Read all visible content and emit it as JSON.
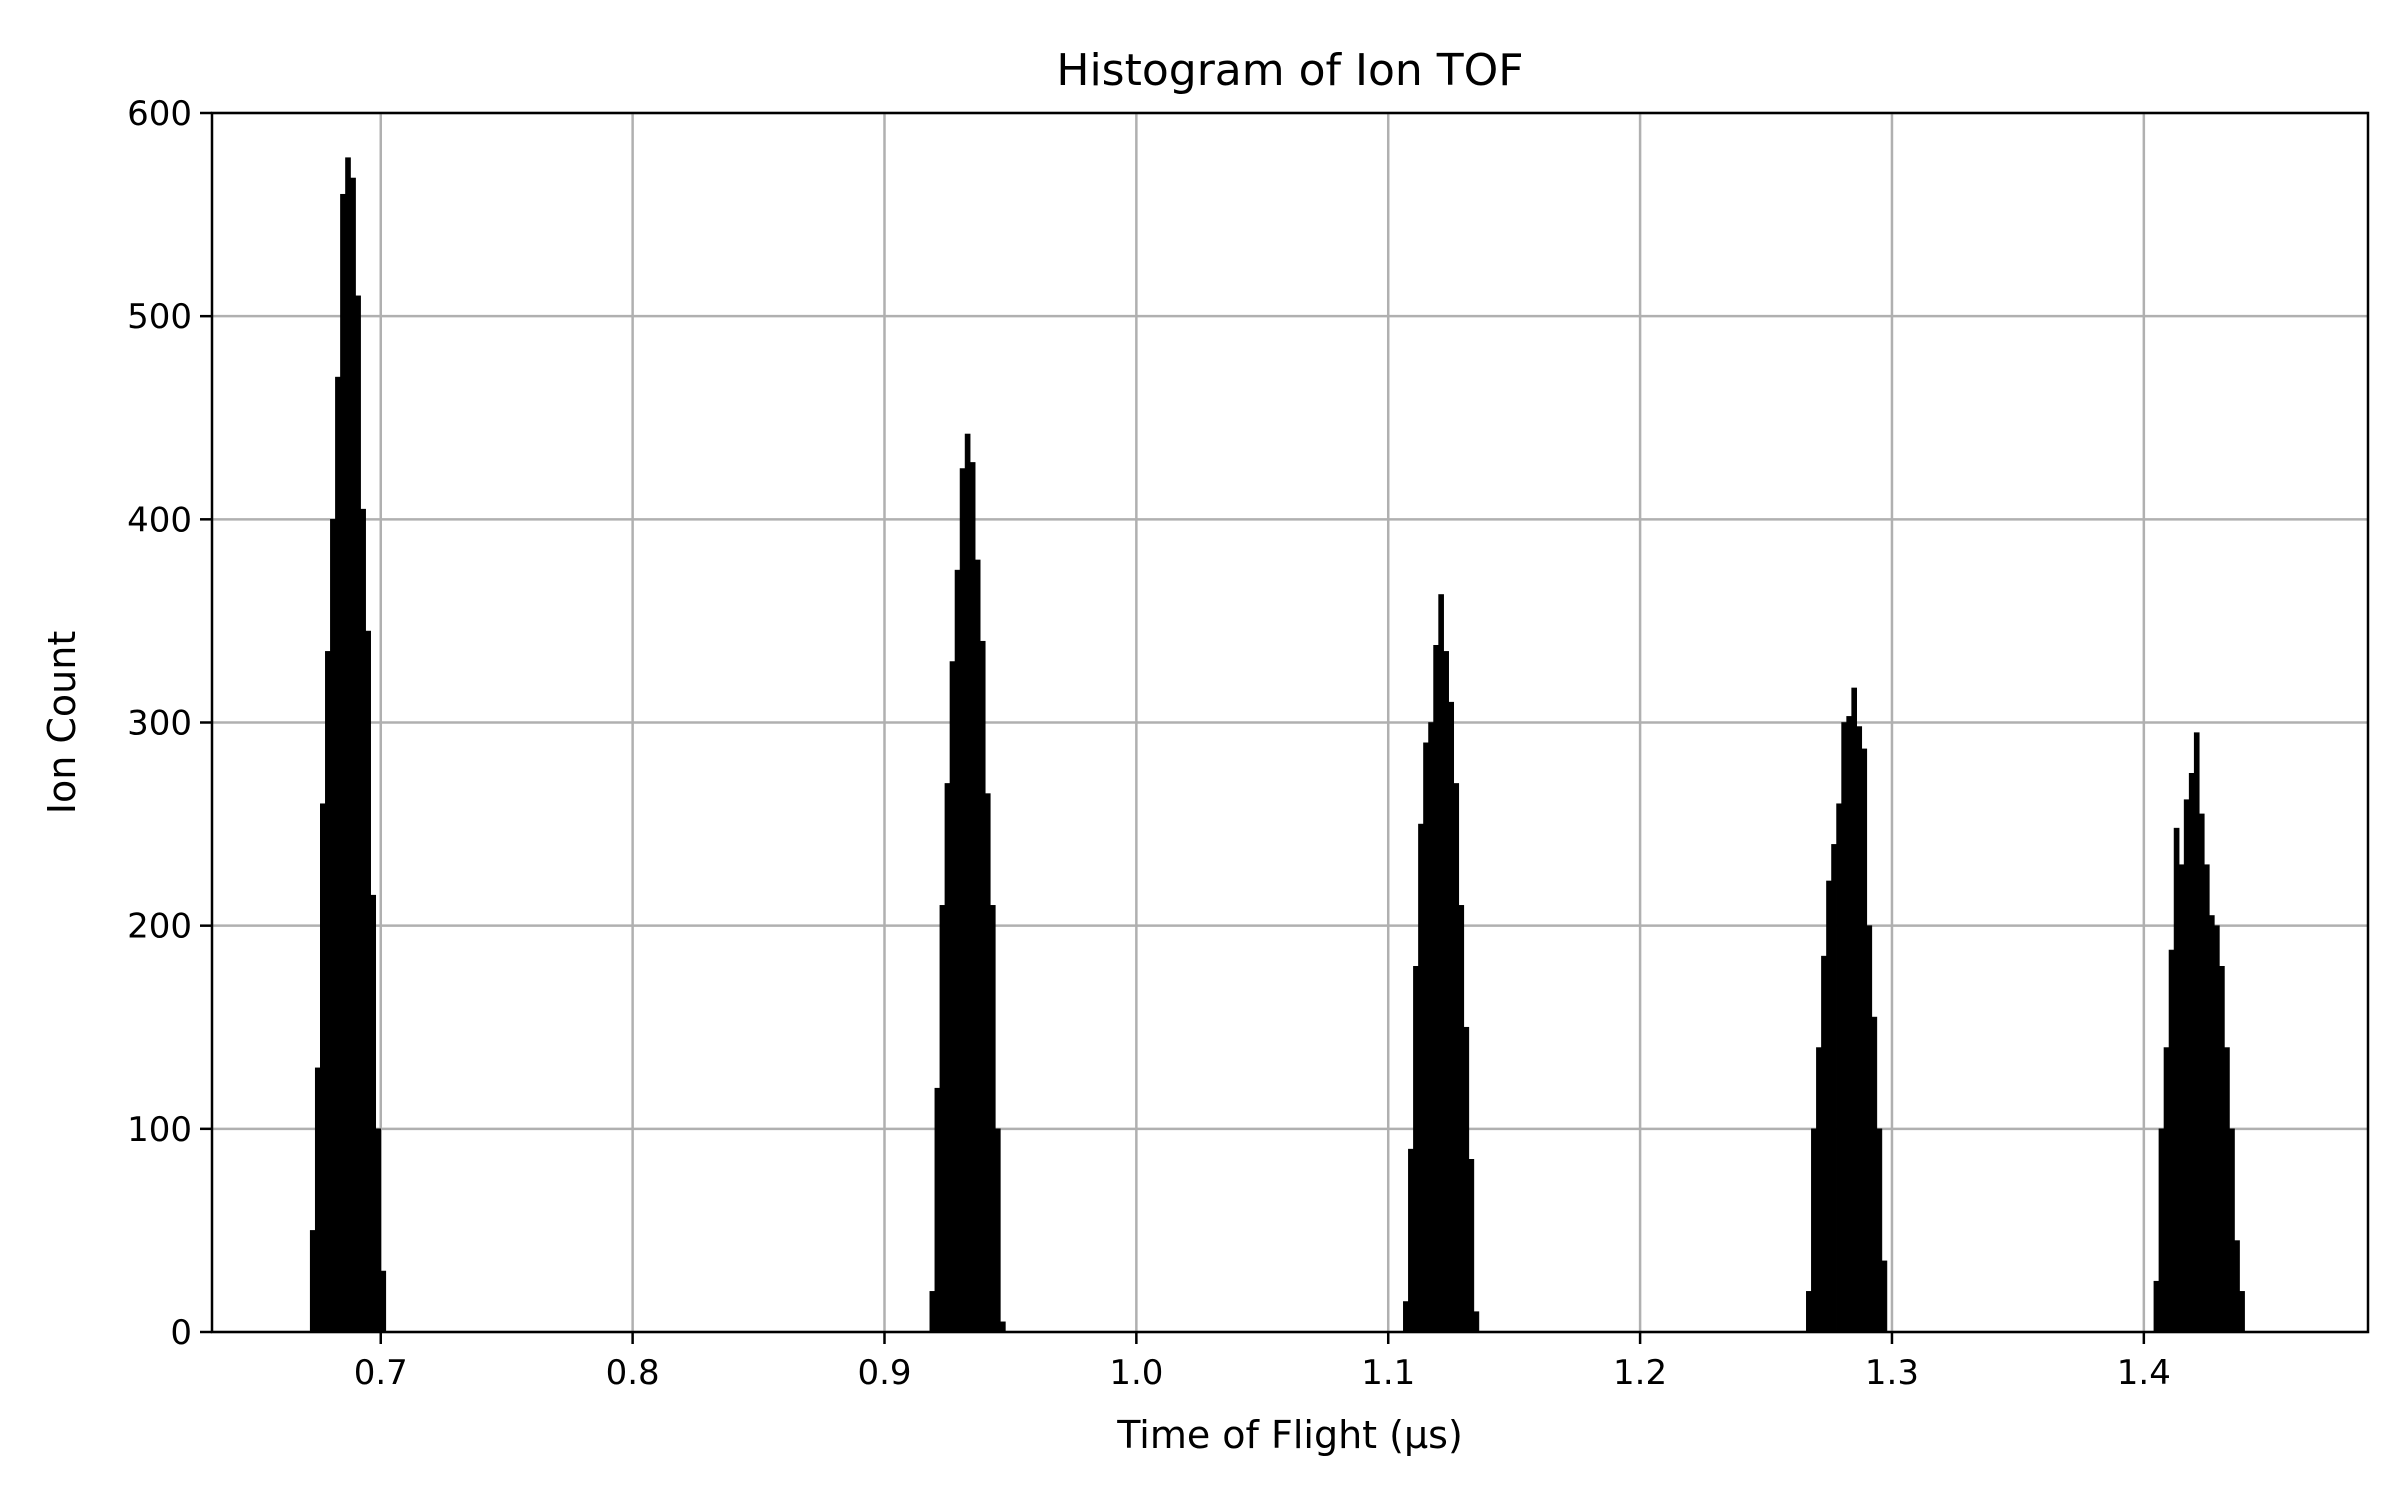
{
  "chart_data": {
    "type": "bar",
    "title": "Histogram of Ion TOF",
    "xlabel": "Time of Flight (µs)",
    "ylabel": "Ion Count",
    "xlim": [
      0.633,
      1.489
    ],
    "ylim": [
      0,
      600
    ],
    "grid": true,
    "xticks": [
      "0.7",
      "0.8",
      "0.9",
      "1.0",
      "1.1",
      "1.2",
      "1.3",
      "1.4"
    ],
    "yticks": [
      "0",
      "100",
      "200",
      "300",
      "400",
      "500",
      "600"
    ],
    "bar_color": "#000000",
    "bin_width": 0.002,
    "peaks": [
      {
        "name": "peak-1",
        "start": 0.672,
        "values": [
          50,
          130,
          260,
          335,
          400,
          470,
          560,
          578,
          568,
          510,
          405,
          345,
          215,
          100,
          30
        ]
      },
      {
        "name": "peak-2",
        "start": 0.918,
        "values": [
          20,
          120,
          210,
          270,
          330,
          375,
          425,
          442,
          428,
          380,
          340,
          265,
          210,
          100,
          5
        ]
      },
      {
        "name": "peak-3",
        "start": 1.106,
        "values": [
          15,
          90,
          180,
          250,
          290,
          300,
          338,
          363,
          335,
          310,
          270,
          210,
          150,
          85,
          10
        ]
      },
      {
        "name": "peak-4",
        "start": 1.266,
        "values": [
          20,
          100,
          140,
          185,
          222,
          240,
          260,
          300,
          303,
          317,
          298,
          287,
          200,
          155,
          100,
          35
        ]
      },
      {
        "name": "peak-5",
        "start": 1.404,
        "values": [
          25,
          100,
          140,
          188,
          248,
          230,
          262,
          275,
          295,
          255,
          230,
          205,
          200,
          180,
          140,
          100,
          45,
          20
        ]
      }
    ]
  }
}
